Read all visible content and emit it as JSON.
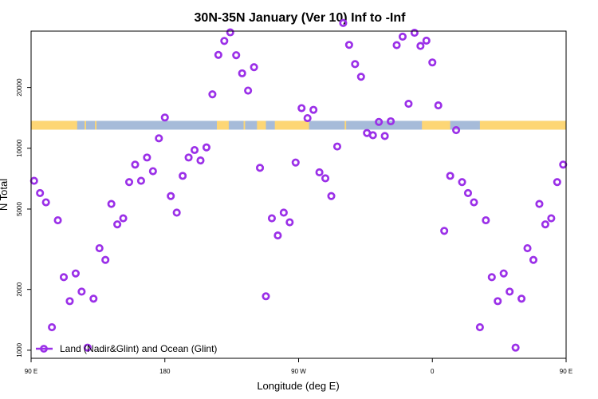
{
  "chart_data": {
    "type": "scatter",
    "title": "30N-35N January (Ver 10)   Inf to -Inf",
    "xlabel": "Longitude (deg E)",
    "ylabel": "N Total",
    "y_scale": "log",
    "xlim": [
      90,
      450
    ],
    "ylim_log10": [
      2.96,
      4.58
    ],
    "x_ticks": [
      {
        "value": 90,
        "label": "90 E"
      },
      {
        "value": 180,
        "label": "180"
      },
      {
        "value": 270,
        "label": "90 W"
      },
      {
        "value": 360,
        "label": "0"
      },
      {
        "value": 450,
        "label": "90 E"
      }
    ],
    "y_ticks": [
      {
        "value": 1000,
        "label": "1000"
      },
      {
        "value": 2000,
        "label": "2000"
      },
      {
        "value": 5000,
        "label": "5000"
      },
      {
        "value": 10000,
        "label": "10000"
      },
      {
        "value": 20000,
        "label": "20000"
      }
    ],
    "legend": {
      "label": "Land (Nadir&Glint) and Ocean (Glint)",
      "position": "bottom-left"
    },
    "colors": {
      "points": "#9b30e8",
      "land": "#fdd675",
      "ocean": "#a6bbd9",
      "axis": "#000000"
    },
    "land_ocean_strip": {
      "y_value": 13000,
      "land_segments": [
        [
          90,
          121
        ],
        [
          126,
          127
        ],
        [
          133,
          134
        ],
        [
          215,
          223
        ],
        [
          233,
          234
        ],
        [
          242,
          248
        ],
        [
          254,
          277
        ],
        [
          301,
          302
        ],
        [
          353,
          372
        ],
        [
          392,
          455
        ]
      ]
    },
    "series": [
      {
        "name": "Land (Nadir&Glint) and Ocean (Glint)",
        "x": [
          92,
          96,
          100,
          104,
          108,
          112,
          116,
          120,
          124,
          128,
          132,
          136,
          140,
          144,
          148,
          152,
          156,
          160,
          164,
          168,
          172,
          176,
          180,
          184,
          188,
          192,
          196,
          200,
          204,
          208,
          212,
          216,
          220,
          224,
          228,
          232,
          236,
          240,
          244,
          248,
          252,
          256,
          260,
          264,
          268,
          272,
          276,
          280,
          284,
          288,
          292,
          296,
          300,
          304,
          308,
          312,
          316,
          320,
          324,
          328,
          332,
          336,
          340,
          344,
          348,
          352,
          356,
          360,
          364,
          368,
          372,
          376,
          380,
          384,
          388,
          392,
          396,
          400,
          404,
          408,
          412,
          416,
          420,
          424,
          428,
          432,
          436,
          440,
          444,
          448
        ],
        "y": [
          6900,
          6000,
          5400,
          1300,
          4400,
          2300,
          1750,
          2400,
          1950,
          1030,
          1800,
          3200,
          2800,
          5300,
          4200,
          4500,
          6800,
          8300,
          6900,
          9000,
          7700,
          11200,
          14200,
          5800,
          4800,
          7300,
          9000,
          9800,
          8700,
          10100,
          18500,
          29000,
          34000,
          37500,
          28900,
          23500,
          19300,
          25200,
          8000,
          1850,
          4500,
          3700,
          4800,
          4300,
          8500,
          15800,
          14100,
          15500,
          7600,
          7100,
          5800,
          10200,
          41700,
          32500,
          26100,
          22600,
          11900,
          11600,
          13500,
          11500,
          13600,
          32400,
          35700,
          16600,
          37300,
          32100,
          34100,
          26600,
          16300,
          3900,
          7300,
          12300,
          6800,
          6000,
          5400,
          1300,
          4400,
          2300,
          1750,
          2400,
          1950,
          1030,
          1800,
          3200,
          2800,
          5300,
          4200,
          4500,
          6800,
          8300
        ]
      }
    ]
  }
}
